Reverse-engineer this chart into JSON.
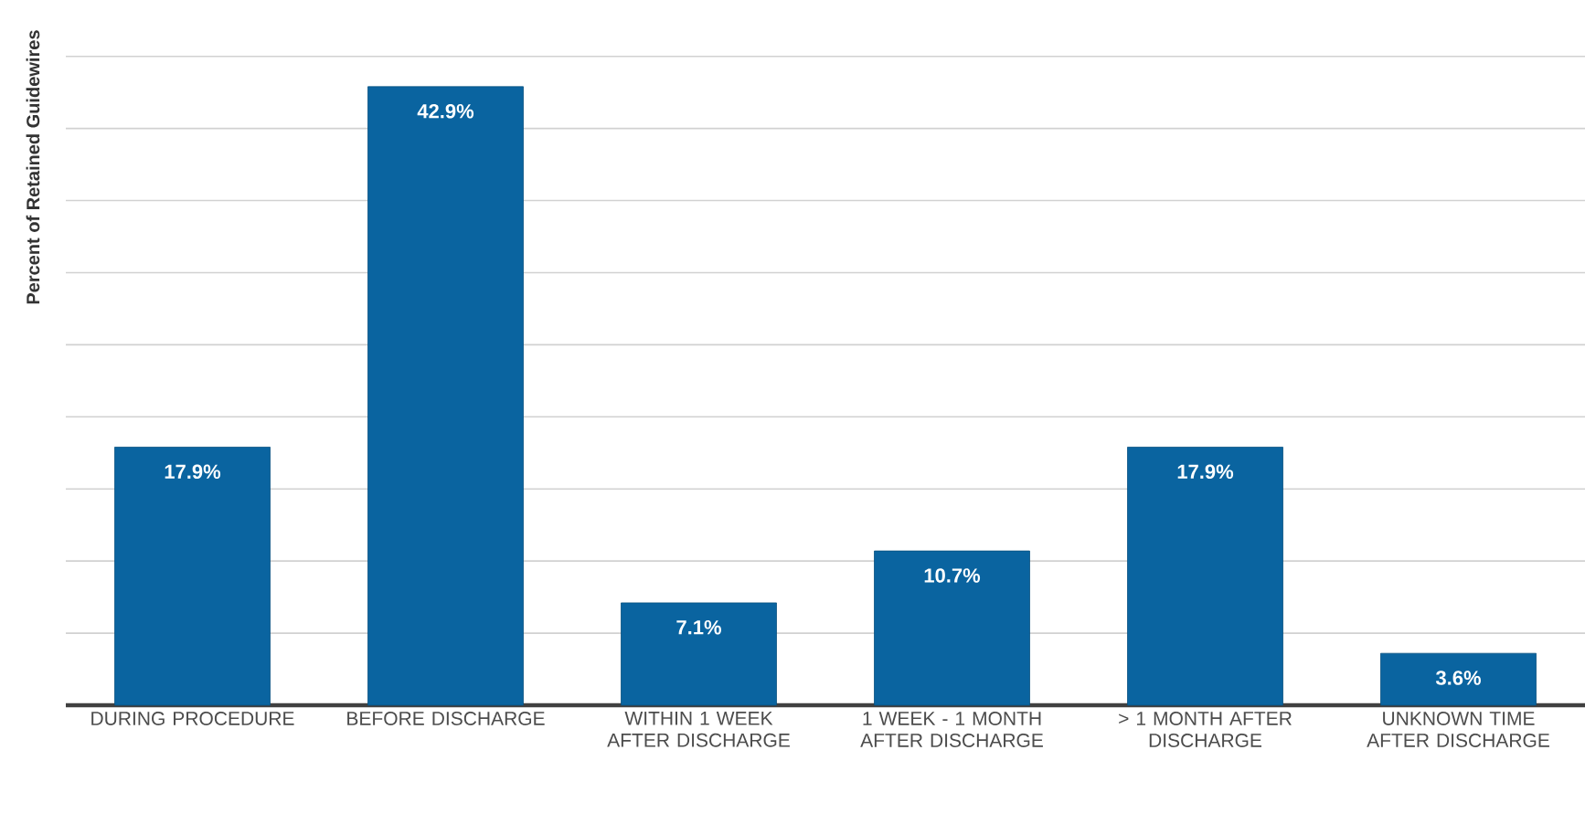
{
  "chart_data": {
    "type": "bar",
    "ylabel": "Percent of Retained Guidewires",
    "categories": [
      "DURING PROCEDURE",
      "BEFORE DISCHARGE",
      "WITHIN 1 WEEK AFTER DISCHARGE",
      "1 WEEK - 1 MONTH AFTER DISCHARGE",
      "> 1 MONTH AFTER DISCHARGE",
      "UNKNOWN TIME AFTER DISCHARGE"
    ],
    "values": [
      17.9,
      42.9,
      7.1,
      10.7,
      17.9,
      3.6
    ],
    "value_labels": [
      "17.9%",
      "42.9%",
      "7.1%",
      "10.7%",
      "17.9%",
      "3.6%"
    ],
    "color": "#0a64a0",
    "grid": "y",
    "tick_labels": "x"
  }
}
